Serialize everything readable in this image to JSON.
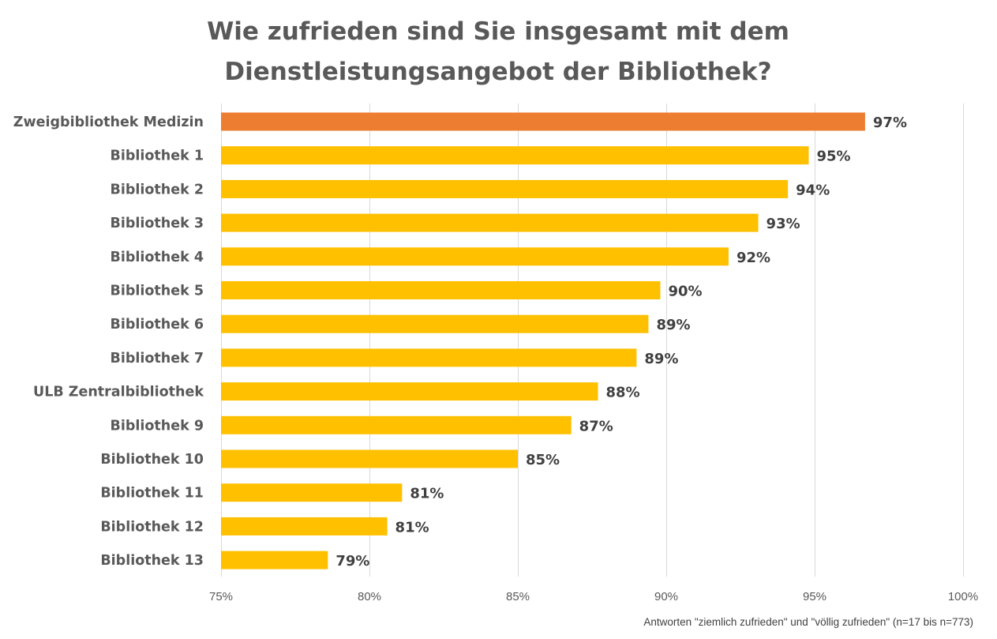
{
  "chart_data": {
    "type": "bar",
    "orientation": "horizontal",
    "title": "Wie zufrieden sind Sie insgesamt mit dem Dienstleistungsangebot der Bibliothek?",
    "title_lines": [
      "Wie zufrieden sind Sie insgesamt mit dem",
      "Dienstleistungsangebot der Bibliothek?"
    ],
    "xlabel": "",
    "ylabel": "",
    "xlim": [
      75,
      100
    ],
    "x_ticks": [
      75,
      80,
      85,
      90,
      95,
      100
    ],
    "x_tick_labels": [
      "75%",
      "80%",
      "85%",
      "90%",
      "95%",
      "100%"
    ],
    "grid": true,
    "legend": "none",
    "categories": [
      "Zweigbibliothek Medizin",
      "Bibliothek 1",
      "Bibliothek 2",
      "Bibliothek 3",
      "Bibliothek 4",
      "Bibliothek 5",
      "Bibliothek 6",
      "Bibliothek 7",
      "ULB Zentralbibliothek",
      "Bibliothek 9",
      "Bibliothek 10",
      "Bibliothek 11",
      "Bibliothek 12",
      "Bibliothek 13"
    ],
    "values": [
      96.7,
      94.8,
      94.1,
      93.1,
      92.1,
      89.8,
      89.4,
      89.0,
      87.7,
      86.8,
      85.0,
      81.1,
      80.6,
      78.6
    ],
    "data_labels": [
      "97%",
      "95%",
      "94%",
      "93%",
      "92%",
      "90%",
      "89%",
      "89%",
      "88%",
      "87%",
      "85%",
      "81%",
      "81%",
      "79%"
    ],
    "highlight_index": 0,
    "colors": {
      "highlight": "#ED7D31",
      "default": "#FFC000",
      "grid": "#D9D9D9"
    },
    "annotation": "Antworten \"ziemlich zufrieden\" und \"völlig zufrieden\" (n=17 bis n=773)"
  }
}
